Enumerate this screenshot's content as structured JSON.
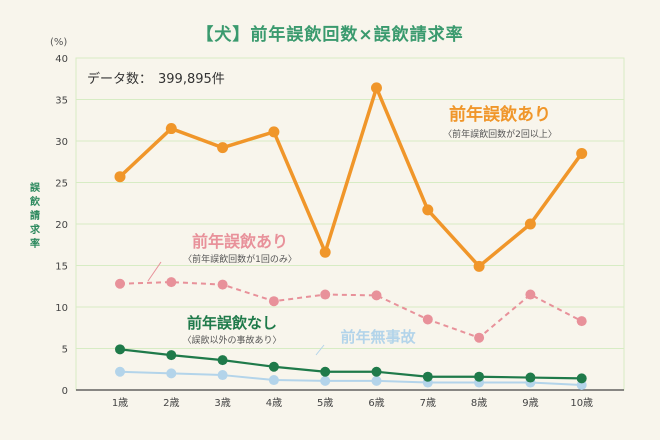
{
  "chart_data": {
    "type": "line",
    "title": "【犬】前年誤飲回数×誤飲請求率",
    "unit": "(%)",
    "ylabel": "誤飲請求率",
    "count_label": "データ数：",
    "count_value": "399,895件",
    "categories": [
      "1歳",
      "2歳",
      "3歳",
      "4歳",
      "5歳",
      "6歳",
      "7歳",
      "8歳",
      "9歳",
      "10歳"
    ],
    "ylim": [
      0,
      40
    ],
    "yticks": [
      0,
      5,
      10,
      15,
      20,
      25,
      30,
      35,
      40
    ],
    "grid": true,
    "series": [
      {
        "name": "前年誤飲あり",
        "sub": "〈前年誤飲回数が2回以上〉",
        "color": "#f0962a",
        "dashed": false,
        "values": [
          25.7,
          31.5,
          29.2,
          31.1,
          16.6,
          36.4,
          21.7,
          14.9,
          20.0,
          28.5
        ]
      },
      {
        "name": "前年誤飲あり",
        "sub": "〈前年誤飲回数が1回のみ〉",
        "color": "#e8919a",
        "dashed": true,
        "values": [
          12.8,
          13.0,
          12.7,
          10.7,
          11.5,
          11.4,
          8.5,
          6.3,
          11.5,
          8.3
        ]
      },
      {
        "name": "前年誤飲なし",
        "sub": "〈誤飲以外の事故あり〉",
        "color": "#1f7a4a",
        "dashed": false,
        "values": [
          4.9,
          4.2,
          3.6,
          2.8,
          2.2,
          2.2,
          1.6,
          1.6,
          1.5,
          1.4
        ]
      },
      {
        "name": "前年無事故",
        "sub": "",
        "color": "#b3d4ea",
        "dashed": false,
        "values": [
          2.2,
          2.0,
          1.8,
          1.2,
          1.1,
          1.1,
          0.9,
          0.9,
          0.9,
          0.6
        ]
      }
    ]
  },
  "colors": {
    "title": "#3a9a6e",
    "grid": "#d7ecc4",
    "axis": "#444"
  }
}
